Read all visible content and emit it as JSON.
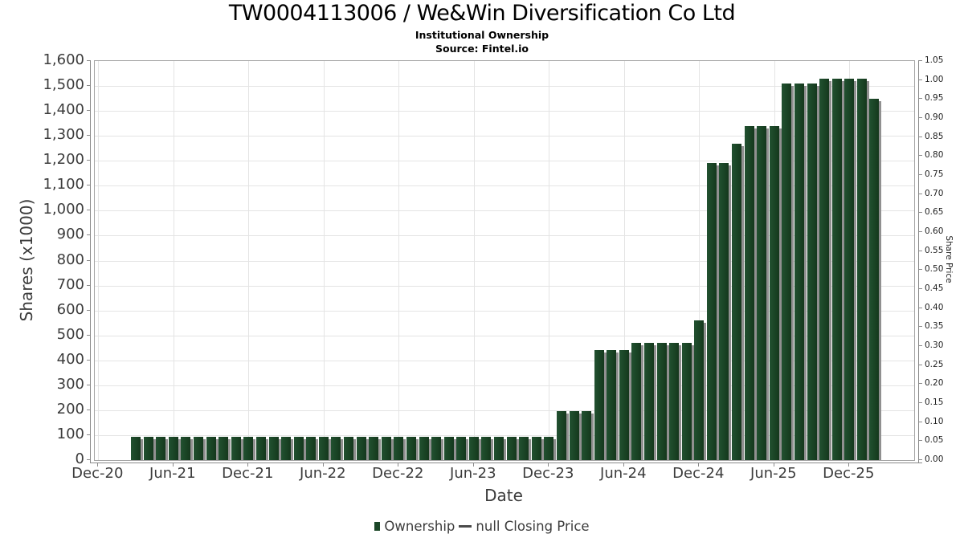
{
  "header": {
    "title": "TW0004113006 / We&Win Diversification Co Ltd",
    "subtitle": "Institutional Ownership",
    "source": "Source: Fintel.io"
  },
  "legend": {
    "ownership_label": "Ownership",
    "price_label": "null Closing Price"
  },
  "colors": {
    "bar_green": "#1b4627",
    "bar_shadow": "#909090",
    "gridline": "#e4e4e4",
    "axis": "#8a8a8a"
  },
  "chart_data": {
    "type": "bar",
    "title": "TW0004113006 / We&Win Diversification Co Ltd",
    "subtitle": "Institutional Ownership",
    "source": "Source: Fintel.io",
    "xlabel": "Date",
    "ylabel_left": "Shares (x1000)",
    "ylabel_right": "Share Price",
    "ylim_left": [
      0,
      1600
    ],
    "ylim_right": [
      0,
      1.05
    ],
    "grid": true,
    "legend_position": "bottom",
    "series_name": "Ownership",
    "x_ticks": [
      "Dec-20",
      "Jun-21",
      "Dec-21",
      "Jun-22",
      "Dec-22",
      "Jun-23",
      "Dec-23",
      "Jun-24",
      "Dec-24",
      "Jun-25",
      "Dec-25"
    ],
    "y_ticks_left": [
      "0",
      "100",
      "200",
      "300",
      "400",
      "500",
      "600",
      "700",
      "800",
      "900",
      "1,000",
      "1,100",
      "1,200",
      "1,300",
      "1,400",
      "1,500",
      "1,600"
    ],
    "y_ticks_right": [
      "0.00",
      "0.05",
      "0.10",
      "0.15",
      "0.20",
      "0.25",
      "0.30",
      "0.35",
      "0.40",
      "0.45",
      "0.50",
      "0.55",
      "0.60",
      "0.65",
      "0.70",
      "0.75",
      "0.80",
      "0.85",
      "0.90",
      "0.95",
      "1.00",
      "1.05"
    ],
    "categories": [
      "Mar-21",
      "Apr-21",
      "May-21",
      "Jun-21",
      "Jul-21",
      "Aug-21",
      "Sep-21",
      "Oct-21",
      "Nov-21",
      "Dec-21",
      "Jan-22",
      "Feb-22",
      "Mar-22",
      "Apr-22",
      "May-22",
      "Jun-22",
      "Jul-22",
      "Aug-22",
      "Sep-22",
      "Oct-22",
      "Nov-22",
      "Dec-22",
      "Jan-23",
      "Feb-23",
      "Mar-23",
      "Apr-23",
      "May-23",
      "Jun-23",
      "Jul-23",
      "Aug-23",
      "Sep-23",
      "Oct-23",
      "Nov-23",
      "Dec-23",
      "Jan-24",
      "Feb-24",
      "Mar-24",
      "Apr-24",
      "May-24",
      "Jun-24",
      "Jul-24",
      "Aug-24",
      "Sep-24",
      "Oct-24",
      "Nov-24",
      "Dec-24",
      "Jan-25",
      "Feb-25",
      "Mar-25",
      "Apr-25",
      "May-25",
      "Jun-25",
      "Jul-25",
      "Aug-25",
      "Sep-25",
      "Oct-25",
      "Nov-25",
      "Dec-25",
      "Jan-26",
      "Feb-26"
    ],
    "values": [
      95,
      95,
      95,
      95,
      95,
      95,
      95,
      95,
      95,
      95,
      95,
      95,
      95,
      95,
      95,
      95,
      95,
      95,
      95,
      95,
      95,
      95,
      95,
      95,
      95,
      95,
      95,
      95,
      95,
      95,
      95,
      95,
      95,
      95,
      195,
      195,
      195,
      440,
      440,
      440,
      470,
      470,
      470,
      470,
      470,
      560,
      1190,
      1190,
      1270,
      1340,
      1340,
      1340,
      1510,
      1510,
      1510,
      1530,
      1530,
      1530,
      1530,
      1450
    ]
  }
}
